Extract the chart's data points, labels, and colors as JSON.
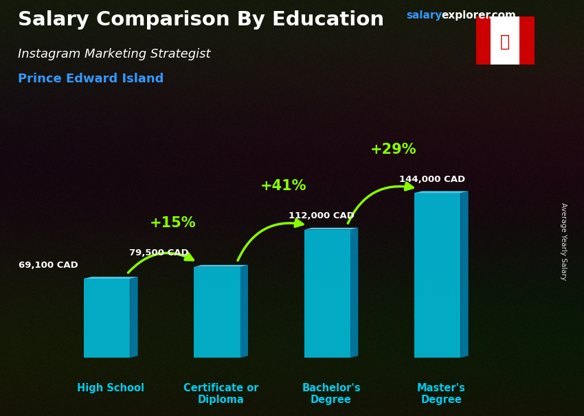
{
  "title": "Salary Comparison By Education",
  "subtitle1": "Instagram Marketing Strategist",
  "subtitle2": "Prince Edward Island",
  "ylabel": "Average Yearly Salary",
  "categories": [
    "High School",
    "Certificate or\nDiploma",
    "Bachelor's\nDegree",
    "Master's\nDegree"
  ],
  "values": [
    69100,
    79500,
    112000,
    144000
  ],
  "value_labels": [
    "69,100 CAD",
    "79,500 CAD",
    "112,000 CAD",
    "144,000 CAD"
  ],
  "pct_labels": [
    "+15%",
    "+41%",
    "+29%"
  ],
  "bar_color_face": "#00CCEE",
  "bar_color_side": "#0088BB",
  "bar_color_top": "#55DDFF",
  "bg_color": "#2B2018",
  "title_color": "#FFFFFF",
  "subtitle1_color": "#FFFFFF",
  "subtitle2_color": "#3399FF",
  "value_color": "#FFFFFF",
  "pct_color": "#88FF00",
  "xlabel_color": "#00CCEE",
  "ylabel_color": "#FFFFFF",
  "brand_color_salary": "#3399FF",
  "brand_color_rest": "#FFFFFF",
  "ylim_max": 200000,
  "bar_alpha": 0.82
}
